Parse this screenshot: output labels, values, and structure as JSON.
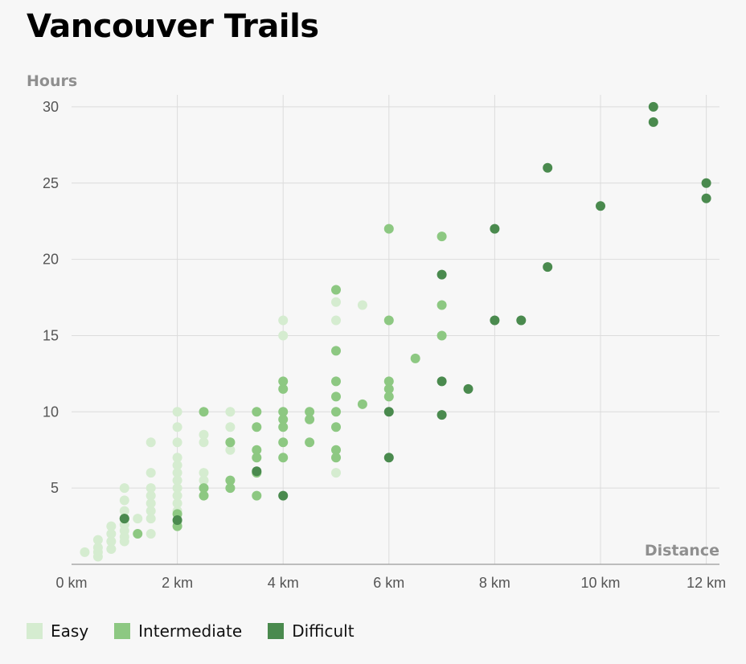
{
  "title": "Vancouver Trails",
  "chart_data": {
    "type": "scatter",
    "title": "Vancouver Trails",
    "xlabel": "Distance",
    "ylabel": "Hours",
    "xlim": [
      0,
      12.2
    ],
    "ylim": [
      0,
      30.5
    ],
    "x_ticks": [
      0,
      2,
      4,
      6,
      8,
      10,
      12
    ],
    "x_tick_labels": [
      "0 km",
      "2 km",
      "4 km",
      "6 km",
      "8 km",
      "10 km",
      "12 km"
    ],
    "y_ticks": [
      5,
      10,
      15,
      20,
      25,
      30
    ],
    "y_tick_labels": [
      "5",
      "10",
      "15",
      "20",
      "25",
      "30"
    ],
    "grid": true,
    "legend_position": "bottom-left",
    "series": [
      {
        "name": "Easy",
        "color": "#d5ecd0",
        "points": [
          [
            0.25,
            0.8
          ],
          [
            0.5,
            0.5
          ],
          [
            0.5,
            0.8
          ],
          [
            0.5,
            1.1
          ],
          [
            0.5,
            1.6
          ],
          [
            0.75,
            1.0
          ],
          [
            0.75,
            1.5
          ],
          [
            0.75,
            2.0
          ],
          [
            0.75,
            2.5
          ],
          [
            1,
            1.5
          ],
          [
            1,
            1.8
          ],
          [
            1,
            2.2
          ],
          [
            1,
            2.6
          ],
          [
            1,
            3.0
          ],
          [
            1,
            3.5
          ],
          [
            1,
            4.2
          ],
          [
            1,
            5.0
          ],
          [
            1.25,
            3.0
          ],
          [
            1.5,
            2.0
          ],
          [
            1.5,
            3.0
          ],
          [
            1.5,
            3.5
          ],
          [
            1.5,
            4.0
          ],
          [
            1.5,
            4.5
          ],
          [
            1.5,
            5.0
          ],
          [
            1.5,
            6.0
          ],
          [
            1.5,
            8.0
          ],
          [
            2,
            2.8
          ],
          [
            2,
            3.5
          ],
          [
            2,
            4.0
          ],
          [
            2,
            4.5
          ],
          [
            2,
            5.0
          ],
          [
            2,
            5.5
          ],
          [
            2,
            6.0
          ],
          [
            2,
            6.5
          ],
          [
            2,
            7.0
          ],
          [
            2,
            8.0
          ],
          [
            2,
            9.0
          ],
          [
            2,
            10.0
          ],
          [
            2.5,
            5.5
          ],
          [
            2.5,
            6.0
          ],
          [
            2.5,
            8.0
          ],
          [
            2.5,
            8.5
          ],
          [
            3,
            7.5
          ],
          [
            3,
            8.0
          ],
          [
            3,
            9.0
          ],
          [
            3,
            10.0
          ],
          [
            4,
            15.0
          ],
          [
            4,
            16.0
          ],
          [
            5,
            6.0
          ],
          [
            5,
            16.0
          ],
          [
            5,
            17.2
          ],
          [
            5.5,
            17.0
          ]
        ]
      },
      {
        "name": "Intermediate",
        "color": "#8dc882",
        "points": [
          [
            1,
            3.0
          ],
          [
            1.25,
            2.0
          ],
          [
            2,
            2.5
          ],
          [
            2,
            3.3
          ],
          [
            2.5,
            4.5
          ],
          [
            2.5,
            5.0
          ],
          [
            2.5,
            10.0
          ],
          [
            3,
            5.0
          ],
          [
            3,
            5.5
          ],
          [
            3,
            8.0
          ],
          [
            3.5,
            4.5
          ],
          [
            3.5,
            6.0
          ],
          [
            3.5,
            7.0
          ],
          [
            3.5,
            7.5
          ],
          [
            3.5,
            9.0
          ],
          [
            3.5,
            10.0
          ],
          [
            4,
            7.0
          ],
          [
            4,
            8.0
          ],
          [
            4,
            9.0
          ],
          [
            4,
            9.5
          ],
          [
            4,
            10.0
          ],
          [
            4,
            11.5
          ],
          [
            4,
            12.0
          ],
          [
            4.5,
            8.0
          ],
          [
            4.5,
            9.5
          ],
          [
            4.5,
            10.0
          ],
          [
            5,
            7.0
          ],
          [
            5,
            7.5
          ],
          [
            5,
            9.0
          ],
          [
            5,
            10.0
          ],
          [
            5,
            11.0
          ],
          [
            5,
            12.0
          ],
          [
            5,
            14.0
          ],
          [
            5,
            18.0
          ],
          [
            5.5,
            10.5
          ],
          [
            6,
            11.0
          ],
          [
            6,
            11.5
          ],
          [
            6,
            12.0
          ],
          [
            6,
            16.0
          ],
          [
            6,
            22.0
          ],
          [
            6.5,
            13.5
          ],
          [
            7,
            15.0
          ],
          [
            7,
            17.0
          ],
          [
            7,
            21.5
          ]
        ]
      },
      {
        "name": "Difficult",
        "color": "#4a8a4e",
        "points": [
          [
            1,
            3.0
          ],
          [
            2,
            2.9
          ],
          [
            3.5,
            6.1
          ],
          [
            4,
            4.5
          ],
          [
            6,
            7.0
          ],
          [
            6,
            10.0
          ],
          [
            7,
            9.8
          ],
          [
            7,
            12.0
          ],
          [
            7,
            19.0
          ],
          [
            7.5,
            11.5
          ],
          [
            8,
            16.0
          ],
          [
            8,
            22.0
          ],
          [
            8.5,
            16.0
          ],
          [
            9,
            19.5
          ],
          [
            9,
            26.0
          ],
          [
            10,
            23.5
          ],
          [
            11,
            29.0
          ],
          [
            11,
            30.0
          ],
          [
            12,
            24.0
          ],
          [
            12,
            25.0
          ]
        ]
      }
    ]
  }
}
